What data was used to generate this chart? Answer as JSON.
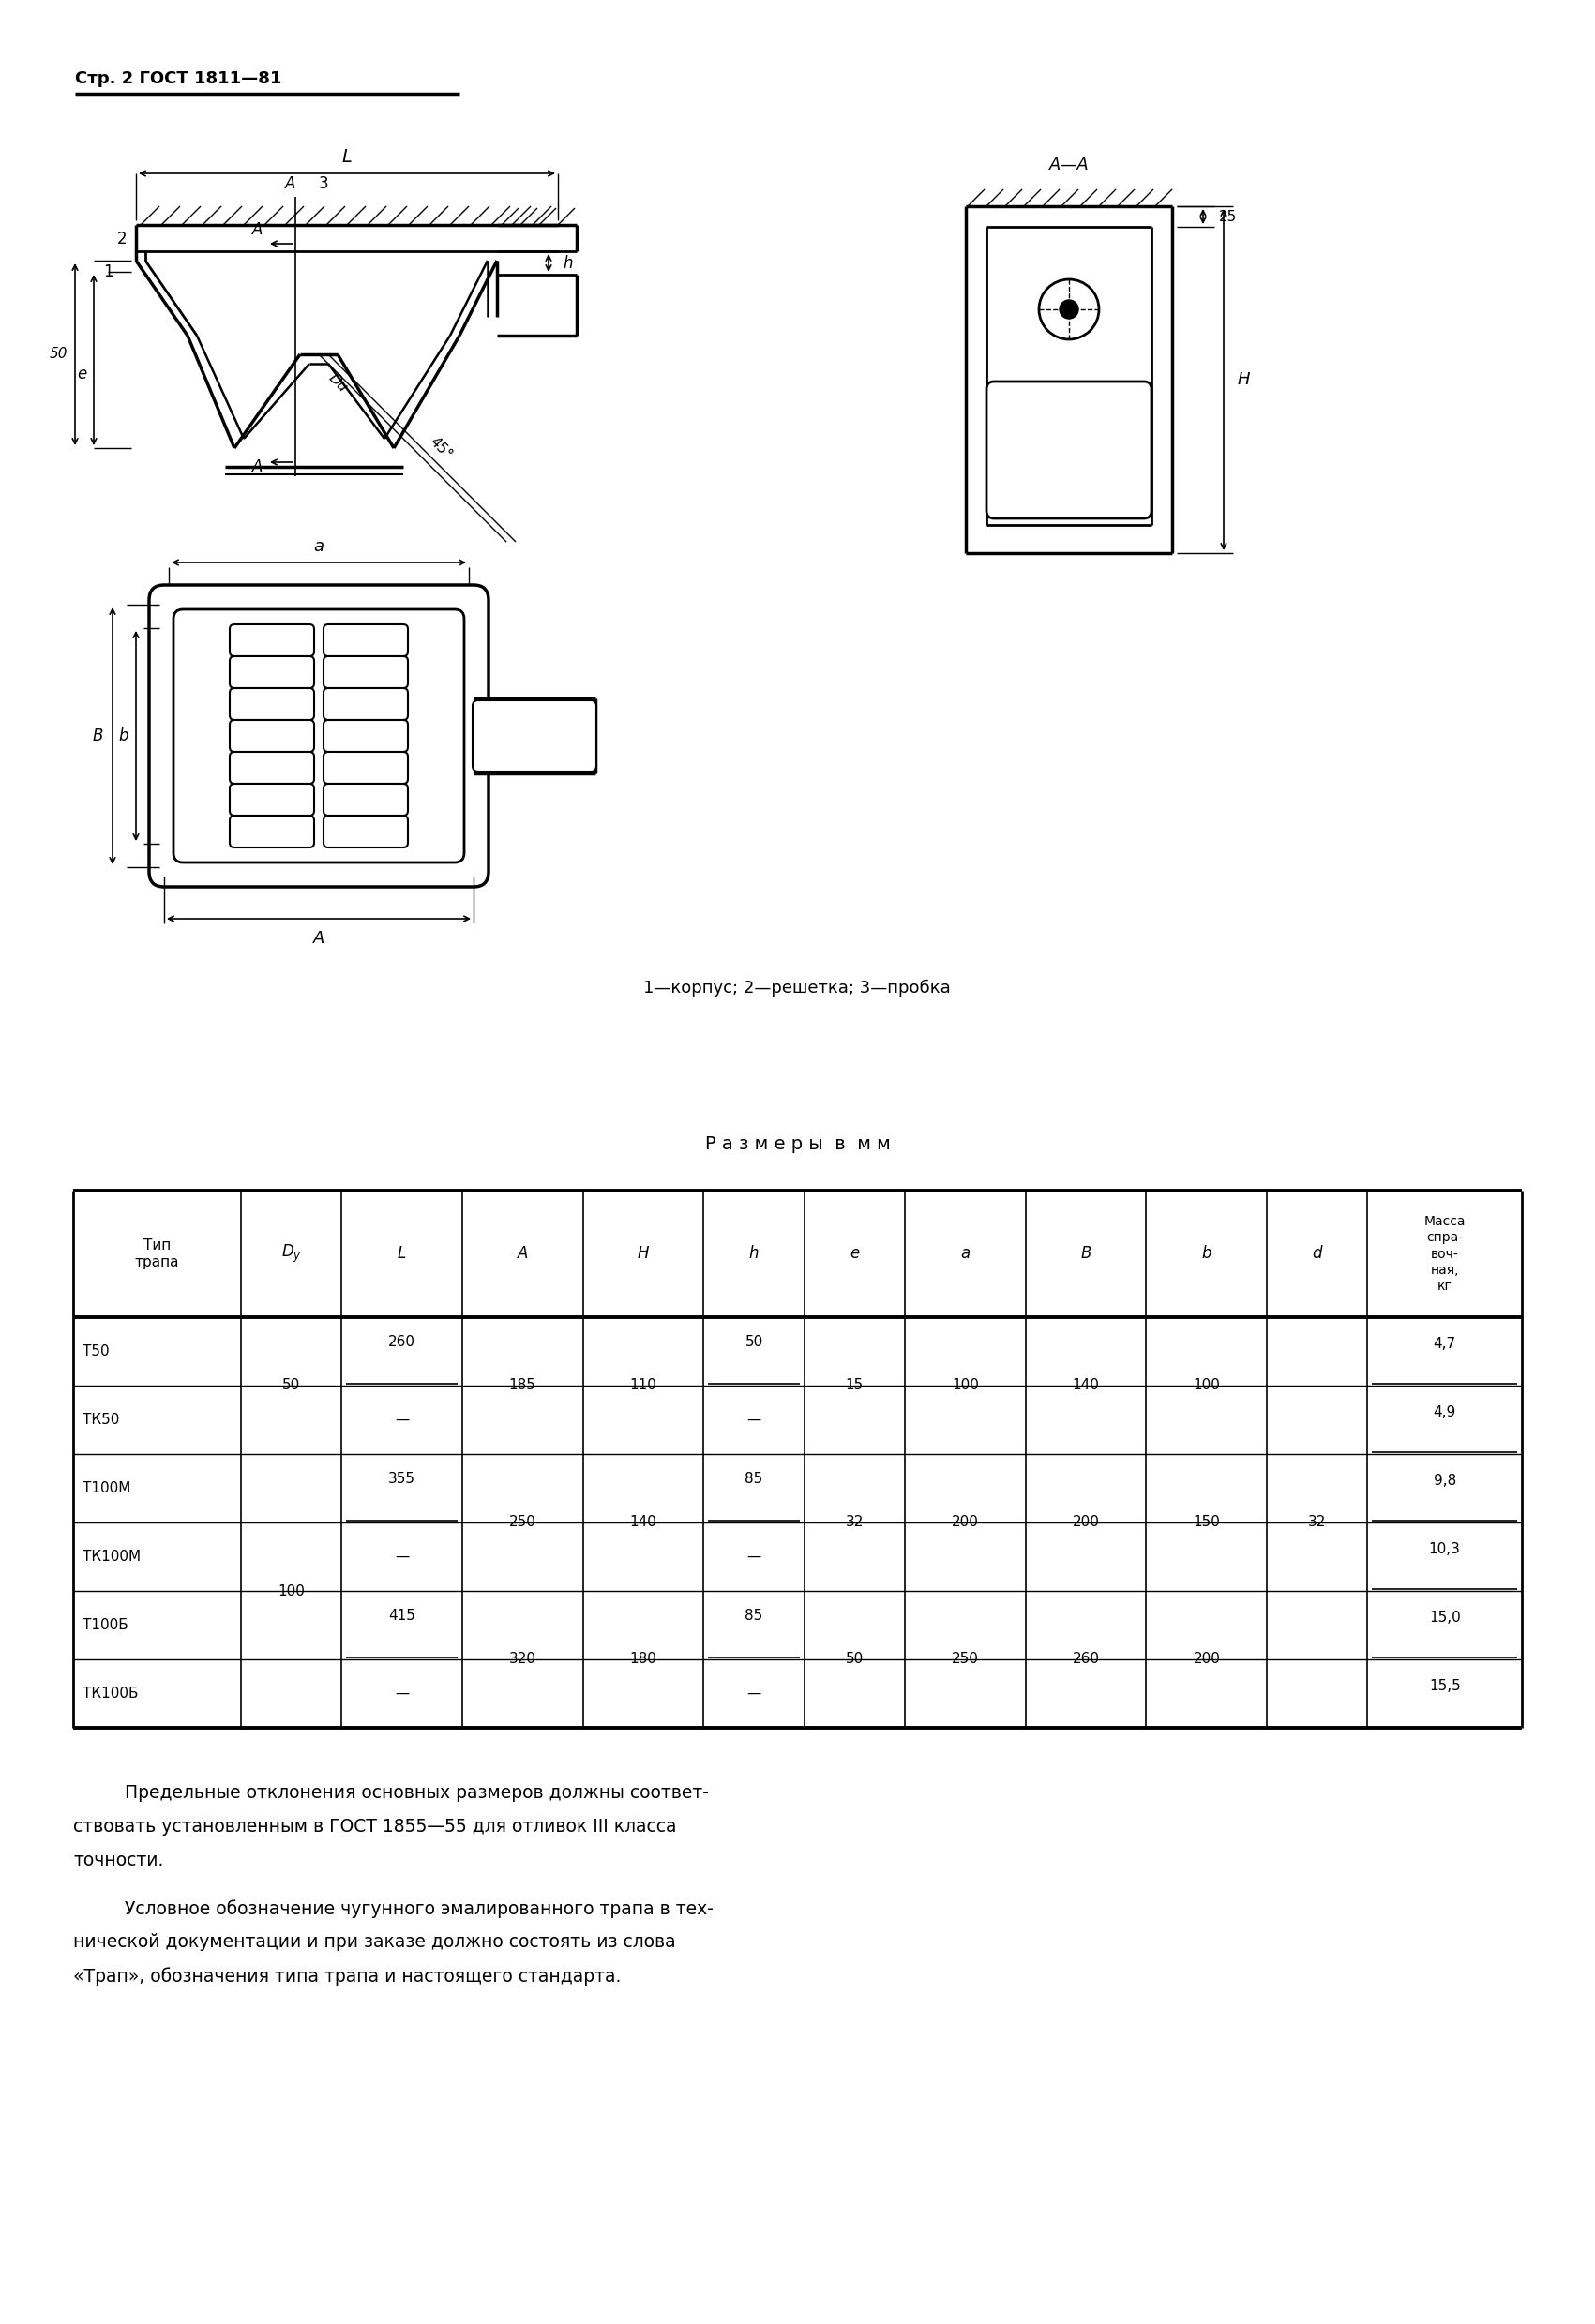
{
  "page_header": "Стр. 2 ГОСТ 1811—81",
  "caption": "1—корпус; 2—решетка; 3—пробка",
  "table_title": "Р а з м е р ы  в  м м",
  "col_headers": [
    "Тип\nтрапа",
    "D",
    "y",
    "L",
    "A",
    "H",
    "h",
    "e",
    "a",
    "B",
    "b",
    "d",
    "Масса\nспра-\nвоч-\nная,\nкг"
  ],
  "rows": [
    [
      "Т50",
      "50",
      "260",
      "185",
      "110",
      "50",
      "15",
      "100",
      "140",
      "100",
      "",
      "4,7"
    ],
    [
      "ТК50",
      "",
      "—",
      "",
      "",
      "—",
      "",
      "",
      "",
      "",
      "",
      "4,9"
    ],
    [
      "Т100М",
      "",
      "355",
      "250",
      "140",
      "85",
      "32",
      "200",
      "200",
      "150",
      "32",
      "9,8"
    ],
    [
      "ТК100М",
      "100",
      "—",
      "",
      "",
      "—",
      "",
      "",
      "",
      "",
      "",
      "10,3"
    ],
    [
      "Т100Б",
      "",
      "415",
      "320",
      "180",
      "85",
      "50",
      "250",
      "260",
      "200",
      "",
      "15,0"
    ],
    [
      "ТК100Б",
      "",
      "—",
      "",
      "",
      "—",
      "",
      "",
      "",
      "",
      "",
      "15,5"
    ]
  ],
  "footnote_para1_lines": [
    "Предельные отклонения основных размеров должны соответ-",
    "ствовать установленным в ГОСТ 1855—55 для отливок III класса",
    "точности."
  ],
  "footnote_para2_lines": [
    "Условное обозначение чугунного эмалированного трапа в тех-",
    "нической документации и при заказе должно состоять из слова",
    "«Трап», обозначения типа трапа и настоящего стандарта."
  ],
  "bg_color": "#ffffff",
  "text_color": "#000000",
  "line_color": "#000000"
}
